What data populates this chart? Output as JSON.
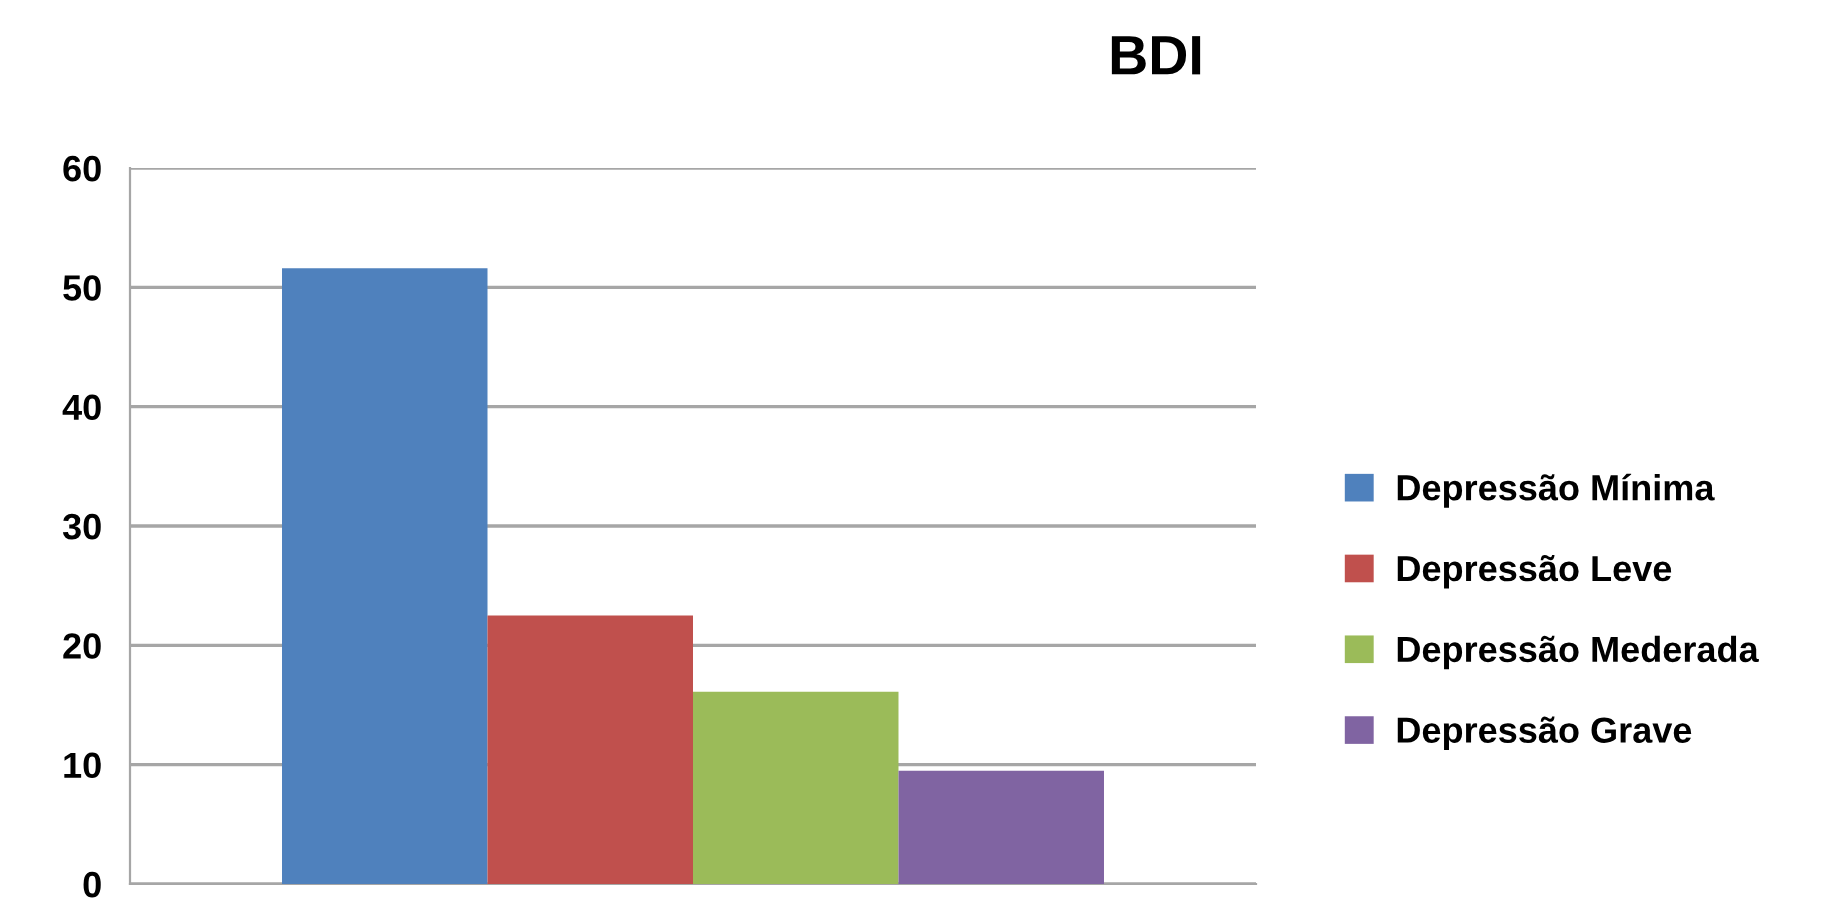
{
  "chart_data": {
    "type": "bar",
    "title": "BDI",
    "categories": [
      null
    ],
    "series": [
      {
        "name": "Depressão Mínima",
        "color": "#4f81bd",
        "values": [
          51.6
        ]
      },
      {
        "name": "Depressão Leve",
        "color": "#c0504d",
        "values": [
          22.5
        ]
      },
      {
        "name": "Depressão Mederada",
        "color": "#9bbb59",
        "values": [
          16.1
        ]
      },
      {
        "name": "Depressão Grave",
        "color": "#8064a2",
        "values": [
          9.5
        ]
      }
    ],
    "ylim": [
      0,
      60
    ],
    "yticks": [
      0,
      10,
      20,
      30,
      40,
      50,
      60
    ],
    "grid": "y",
    "legend": "right"
  }
}
